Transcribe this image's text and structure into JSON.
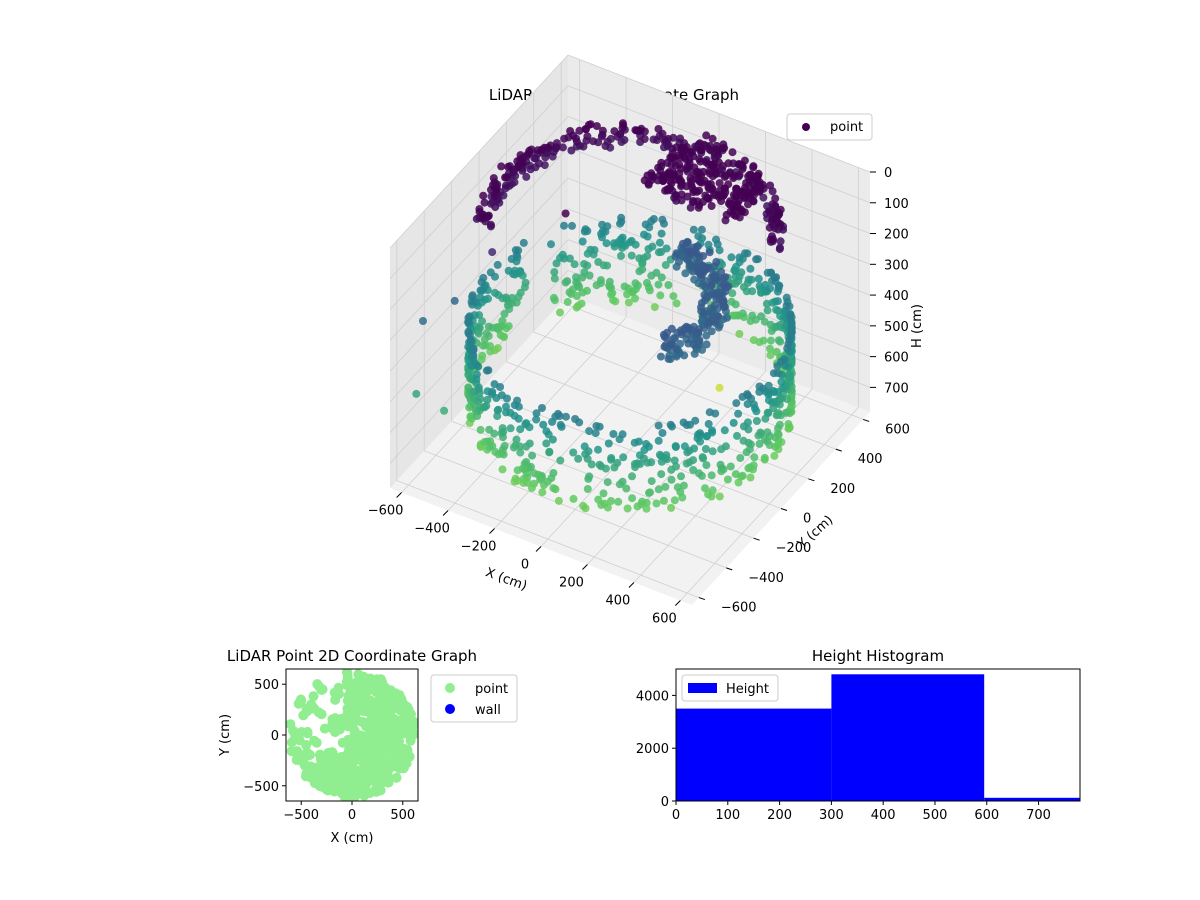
{
  "chart_data": [
    {
      "type": "scatter",
      "projection": "3d",
      "title": "LiDAR Point 3D Coordinate Graph",
      "xlabel": "X (cm)",
      "ylabel": "Y (cm)",
      "zlabel": "H (cm)",
      "xlim": [
        -650,
        650
      ],
      "ylim": [
        -650,
        650
      ],
      "zlim": [
        0,
        780
      ],
      "z_inverted": true,
      "xticks": [
        -600,
        -400,
        -200,
        0,
        200,
        400,
        600
      ],
      "yticks": [
        -600,
        -400,
        -200,
        0,
        200,
        400,
        600
      ],
      "zticks": [
        0,
        100,
        200,
        300,
        400,
        500,
        600,
        700
      ],
      "colormap": "viridis",
      "grid": true,
      "legend": {
        "entries": [
          "point"
        ],
        "placement": "upper-right",
        "marker_color": "#440154"
      },
      "series": [
        {
          "name": "point",
          "description": "outer cylindrical wall",
          "radius": 600,
          "theta_deg": [
            -200,
            150
          ],
          "h_range": [
            360,
            650
          ]
        },
        {
          "name": "point",
          "description": "upper ring",
          "radius": 560,
          "theta_deg": [
            20,
            210
          ],
          "h_range": [
            30,
            90
          ]
        },
        {
          "name": "point",
          "description": "ceiling cluster",
          "center": [
            130,
            330
          ],
          "h_range": [
            0,
            60
          ]
        },
        {
          "name": "point",
          "description": "inner ring",
          "radius": 320,
          "theta_deg": [
            -40,
            90
          ],
          "h_range": [
            250,
            320
          ]
        },
        {
          "name": "point",
          "description": "outliers",
          "x": [
            -230,
            -440,
            -560,
            -620,
            -590,
            -470,
            -120,
            100,
            250,
            280,
            120
          ],
          "y": [
            -80,
            -260,
            -330,
            -460,
            -560,
            -560,
            620,
            600,
            560,
            530,
            450
          ],
          "h": [
            40,
            140,
            300,
            320,
            500,
            520,
            480,
            500,
            560,
            500,
            760
          ]
        }
      ]
    },
    {
      "type": "scatter",
      "title": "LiDAR Point 2D Coordinate Graph",
      "xlabel": "X (cm)",
      "ylabel": "Y (cm)",
      "xlim": [
        -650,
        650
      ],
      "ylim": [
        -650,
        650
      ],
      "xticks": [
        -500,
        0,
        500
      ],
      "yticks": [
        -500,
        0,
        500
      ],
      "legend": {
        "placement": "outside-right"
      },
      "series": [
        {
          "name": "point",
          "color": "#90ee90",
          "description": "filled disc of points",
          "radius": 620
        },
        {
          "name": "wall",
          "color": "#0000ff"
        }
      ]
    },
    {
      "type": "bar",
      "title": "Height Histogram",
      "bins": [
        [
          0,
          300
        ],
        [
          300,
          595
        ],
        [
          595,
          780
        ]
      ],
      "values": [
        3500,
        4800,
        120
      ],
      "xlim": [
        0,
        780
      ],
      "ylim": [
        0,
        5000
      ],
      "xticks": [
        0,
        100,
        200,
        300,
        400,
        500,
        600,
        700
      ],
      "yticks": [
        0,
        2000,
        4000
      ],
      "color": "#0000ff",
      "legend": {
        "entries": [
          "Height"
        ],
        "placement": "upper-left"
      }
    }
  ]
}
